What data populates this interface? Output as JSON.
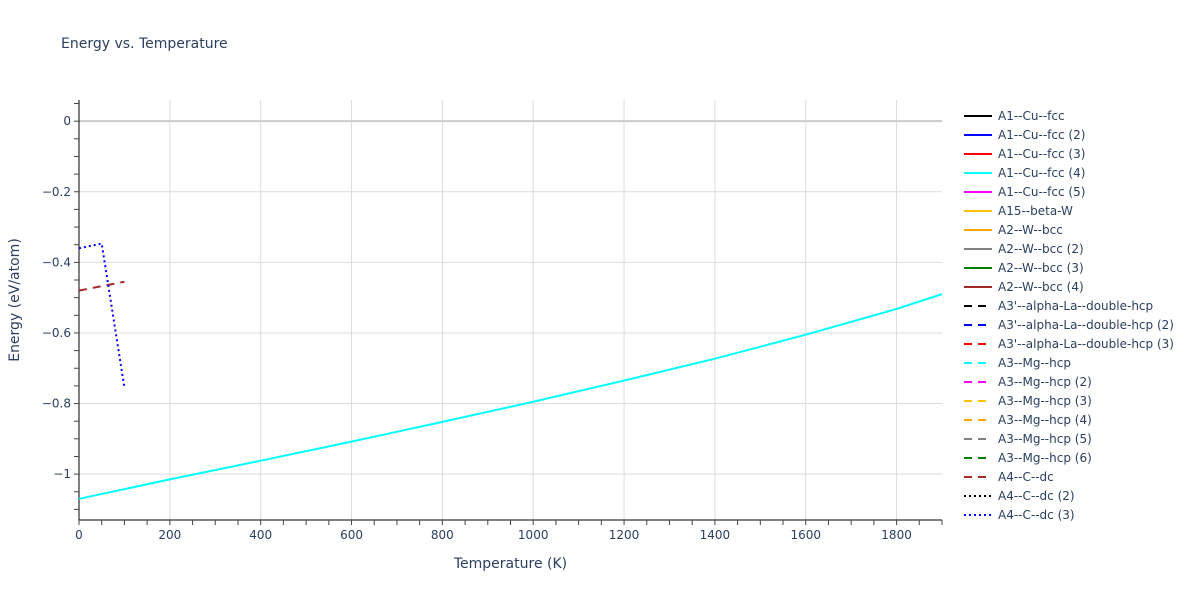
{
  "chart_data": {
    "type": "line",
    "title": "Energy vs. Temperature",
    "xlabel": "Temperature (K)",
    "ylabel": "Energy (eV/atom)",
    "xlim": [
      0,
      1900
    ],
    "ylim": [
      -1.13,
      0.06
    ],
    "xticks": [
      0,
      200,
      400,
      600,
      800,
      1000,
      1200,
      1400,
      1600,
      1800
    ],
    "yticks": [
      0,
      -0.2,
      -0.4,
      -0.6,
      -0.8,
      -1
    ],
    "ytick_labels": [
      "0",
      "−0.2",
      "−0.4",
      "−0.6",
      "−0.8",
      "−1"
    ],
    "grid": true,
    "legend_position": "right",
    "series": [
      {
        "name": "A1--Cu--fcc",
        "color": "#000000",
        "dash": "solid",
        "x": [],
        "y": []
      },
      {
        "name": "A1--Cu--fcc (2)",
        "color": "#0000ff",
        "dash": "solid",
        "x": [],
        "y": []
      },
      {
        "name": "A1--Cu--fcc (3)",
        "color": "#ff0000",
        "dash": "solid",
        "x": [],
        "y": []
      },
      {
        "name": "A1--Cu--fcc (4)",
        "color": "#00ffff",
        "dash": "solid",
        "x": [
          0,
          200,
          400,
          600,
          800,
          1000,
          1200,
          1400,
          1600,
          1800,
          1900
        ],
        "y": [
          -1.07,
          -1.015,
          -0.962,
          -0.908,
          -0.852,
          -0.795,
          -0.735,
          -0.673,
          -0.605,
          -0.532,
          -0.49
        ]
      },
      {
        "name": "A1--Cu--fcc (5)",
        "color": "#ff00ff",
        "dash": "solid",
        "x": [],
        "y": []
      },
      {
        "name": "A15--beta-W",
        "color": "#ffc000",
        "dash": "solid",
        "x": [],
        "y": []
      },
      {
        "name": "A2--W--bcc",
        "color": "#ffa500",
        "dash": "solid",
        "x": [],
        "y": []
      },
      {
        "name": "A2--W--bcc (2)",
        "color": "#808080",
        "dash": "solid",
        "x": [],
        "y": []
      },
      {
        "name": "A2--W--bcc (3)",
        "color": "#008000",
        "dash": "solid",
        "x": [],
        "y": []
      },
      {
        "name": "A2--W--bcc (4)",
        "color": "#a52a2a",
        "dash": "solid",
        "x": [],
        "y": []
      },
      {
        "name": "A3'--alpha-La--double-hcp",
        "color": "#000000",
        "dash": "dash",
        "x": [],
        "y": []
      },
      {
        "name": "A3'--alpha-La--double-hcp (2)",
        "color": "#0000ff",
        "dash": "dash",
        "x": [],
        "y": []
      },
      {
        "name": "A3'--alpha-La--double-hcp (3)",
        "color": "#ff0000",
        "dash": "dash",
        "x": [],
        "y": []
      },
      {
        "name": "A3--Mg--hcp",
        "color": "#00ffff",
        "dash": "dash",
        "x": [],
        "y": []
      },
      {
        "name": "A3--Mg--hcp (2)",
        "color": "#ff00ff",
        "dash": "dash",
        "x": [],
        "y": []
      },
      {
        "name": "A3--Mg--hcp (3)",
        "color": "#ffc000",
        "dash": "dash",
        "x": [],
        "y": []
      },
      {
        "name": "A3--Mg--hcp (4)",
        "color": "#ffa500",
        "dash": "dash",
        "x": [],
        "y": []
      },
      {
        "name": "A3--Mg--hcp (5)",
        "color": "#808080",
        "dash": "dash",
        "x": [],
        "y": []
      },
      {
        "name": "A3--Mg--hcp (6)",
        "color": "#008000",
        "dash": "dash",
        "x": [],
        "y": []
      },
      {
        "name": "A4--C--dc",
        "color": "#a52a2a",
        "dash": "dash",
        "x": [
          0,
          100
        ],
        "y": [
          -0.48,
          -0.455
        ]
      },
      {
        "name": "A4--C--dc (2)",
        "color": "#000000",
        "dash": "dot",
        "x": [],
        "y": []
      },
      {
        "name": "A4--C--dc (3)",
        "color": "#0000ff",
        "dash": "dot",
        "x": [
          0,
          50,
          100
        ],
        "y": [
          -0.36,
          -0.347,
          -0.755
        ]
      }
    ]
  }
}
